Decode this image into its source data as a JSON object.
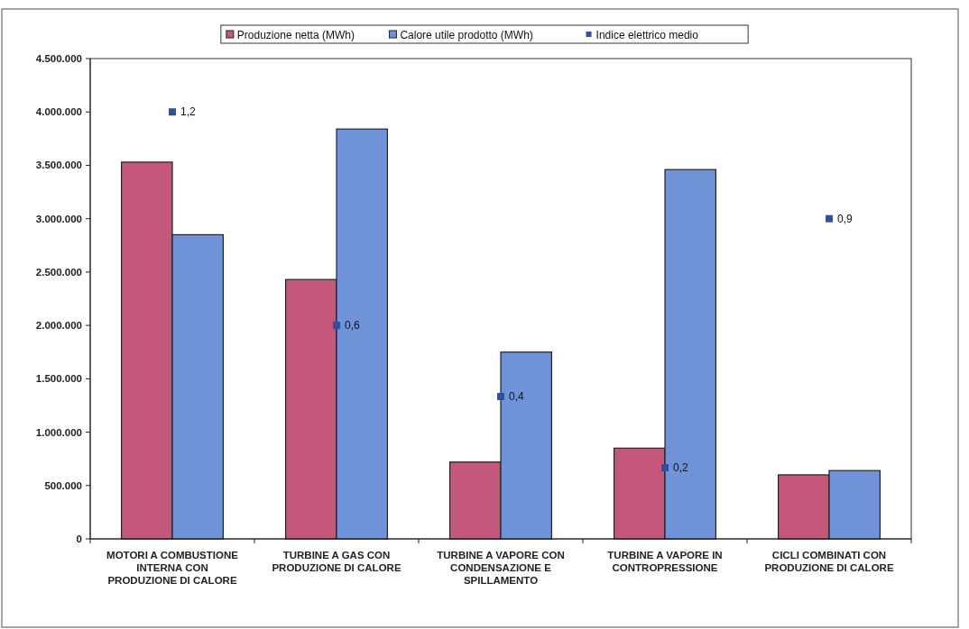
{
  "chart_data": {
    "type": "bar",
    "categories": [
      "MOTORI A COMBUSTIONE INTERNA CON PRODUZIONE DI CALORE",
      "TURBINE A GAS CON PRODUZIONE DI CALORE",
      "TURBINE A VAPORE CON CONDENSAZIONE E SPILLAMENTO",
      "TURBINE A VAPORE IN CONTROPRESSIONE",
      "CICLI COMBINATI CON PRODUZIONE DI CALORE"
    ],
    "series": [
      {
        "name": "Produzione netta (MWh)",
        "color": "#c4587a",
        "values": [
          3530000,
          2430000,
          720000,
          850000,
          600000
        ]
      },
      {
        "name": "Calore utile prodotto (MWh)",
        "color": "#7092d8",
        "values": [
          2850000,
          3840000,
          1750000,
          3460000,
          640000
        ]
      },
      {
        "name": "Indice elettrico medio",
        "type": "scatter",
        "axis": "y2",
        "color": "#2f4f9f",
        "marker": "square",
        "values": [
          1.2,
          0.6,
          0.4,
          0.2,
          0.9
        ],
        "value_labels": [
          "1,2",
          "0,6",
          "0,4",
          "0,2",
          "0,9"
        ]
      }
    ],
    "ylim": [
      0,
      4500000
    ],
    "yticks": [
      {
        "value": 0,
        "label": "0"
      },
      {
        "value": 500000,
        "label": "500.000"
      },
      {
        "value": 1000000,
        "label": "1.000.000"
      },
      {
        "value": 1500000,
        "label": "1.500.000"
      },
      {
        "value": 2000000,
        "label": "2.000.000"
      },
      {
        "value": 2500000,
        "label": "2.500.000"
      },
      {
        "value": 3000000,
        "label": "3.000.000"
      },
      {
        "value": 3500000,
        "label": "3.500.000"
      },
      {
        "value": 4000000,
        "label": "4.000.000"
      },
      {
        "value": 4500000,
        "label": "4.500.000"
      }
    ],
    "y2lim": [
      0,
      1.35
    ],
    "legend": "top",
    "grid": false
  }
}
